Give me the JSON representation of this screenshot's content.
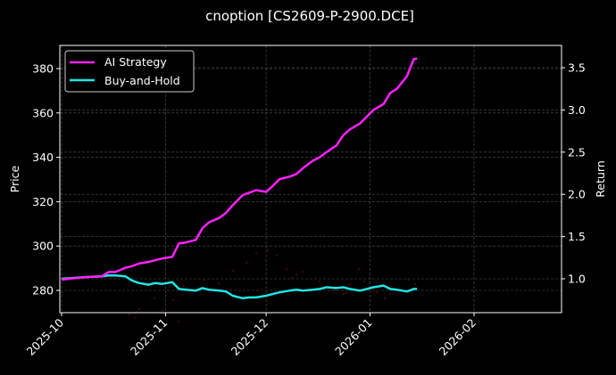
{
  "chart_data": {
    "type": "line",
    "title": "cnoption [CS2609-P-2900.DCE]",
    "xlabel": "",
    "ylabel": "Price",
    "ylabel_right": "Return",
    "ylim": [
      270,
      391
    ],
    "ylim_right": [
      0.6,
      3.75
    ],
    "grid": true,
    "legend_position": "upper left",
    "x_ticks": [
      "2025-10",
      "2025-11",
      "2025-12",
      "2026-01",
      "2026-02"
    ],
    "y_ticks_left": [
      280,
      300,
      320,
      340,
      360,
      380
    ],
    "y_ticks_right": [
      "1.0",
      "1.5",
      "2.0",
      "2.5",
      "3.0",
      "3.5"
    ],
    "x_dates": [
      "2025-10-01",
      "2025-10-08",
      "2025-10-13",
      "2025-10-15",
      "2025-10-17",
      "2025-10-20",
      "2025-10-22",
      "2025-10-24",
      "2025-10-27",
      "2025-10-29",
      "2025-10-31",
      "2025-11-03",
      "2025-11-05",
      "2025-11-07",
      "2025-11-10",
      "2025-11-12",
      "2025-11-14",
      "2025-11-17",
      "2025-11-19",
      "2025-11-21",
      "2025-11-24",
      "2025-11-26",
      "2025-11-28",
      "2025-12-01",
      "2025-12-03",
      "2025-12-05",
      "2025-12-08",
      "2025-12-10",
      "2025-12-12",
      "2025-12-15",
      "2025-12-17",
      "2025-12-19",
      "2025-12-22",
      "2025-12-24",
      "2025-12-26",
      "2025-12-29",
      "2025-12-31",
      "2026-01-02",
      "2026-01-05",
      "2026-01-07",
      "2026-01-09",
      "2026-01-12",
      "2026-01-14",
      "2026-01-15"
    ],
    "series": [
      {
        "name": "AI Strategy",
        "axis": "right",
        "color": "#ff22ff",
        "values": [
          0.99,
          1.02,
          1.03,
          1.08,
          1.08,
          1.13,
          1.15,
          1.18,
          1.2,
          1.22,
          1.24,
          1.26,
          1.42,
          1.43,
          1.46,
          1.6,
          1.67,
          1.72,
          1.78,
          1.87,
          1.99,
          2.02,
          2.05,
          2.03,
          2.1,
          2.18,
          2.21,
          2.24,
          2.31,
          2.4,
          2.44,
          2.5,
          2.58,
          2.7,
          2.77,
          2.84,
          2.92,
          3.0,
          3.07,
          3.2,
          3.25,
          3.4,
          3.6,
          3.61
        ]
      },
      {
        "name": "Buy-and-Hold",
        "axis": "right",
        "color": "#22e5e5",
        "values": [
          1.0,
          1.02,
          1.03,
          1.04,
          1.04,
          1.03,
          0.98,
          0.95,
          0.93,
          0.95,
          0.94,
          0.96,
          0.88,
          0.87,
          0.86,
          0.89,
          0.87,
          0.86,
          0.85,
          0.8,
          0.77,
          0.78,
          0.78,
          0.8,
          0.82,
          0.84,
          0.86,
          0.87,
          0.86,
          0.87,
          0.88,
          0.9,
          0.89,
          0.9,
          0.88,
          0.86,
          0.88,
          0.9,
          0.92,
          0.88,
          0.87,
          0.85,
          0.88,
          0.88
        ]
      }
    ],
    "price_scatter": {
      "name": "Price",
      "axis": "left",
      "color": "#5a0a12",
      "points": [
        [
          145,
          353
        ],
        [
          151,
          357
        ],
        [
          156,
          347
        ],
        [
          173,
          335
        ],
        [
          182,
          348
        ],
        [
          194,
          337
        ],
        [
          200,
          361
        ],
        [
          206,
          321
        ],
        [
          209,
          323
        ],
        [
          228,
          314
        ],
        [
          245,
          318
        ],
        [
          249,
          325
        ],
        [
          261,
          304
        ],
        [
          276,
          295
        ],
        [
          287,
          284
        ],
        [
          300,
          281
        ],
        [
          310,
          287
        ],
        [
          321,
          302
        ],
        [
          327,
          312
        ],
        [
          332,
          308
        ],
        [
          339,
          305
        ],
        [
          354,
          325
        ],
        [
          358,
          316
        ],
        [
          375,
          325
        ],
        [
          385,
          330
        ],
        [
          388,
          329
        ],
        [
          392,
          319
        ],
        [
          402,
          302
        ],
        [
          408,
          316
        ],
        [
          422,
          328
        ],
        [
          431,
          335
        ],
        [
          437,
          330
        ],
        [
          457,
          314
        ],
        [
          465,
          319
        ]
      ]
    }
  },
  "legend": {
    "items": [
      {
        "label": "AI Strategy",
        "color": "#ff22ff"
      },
      {
        "label": "Buy-and-Hold",
        "color": "#22e5e5"
      }
    ]
  }
}
